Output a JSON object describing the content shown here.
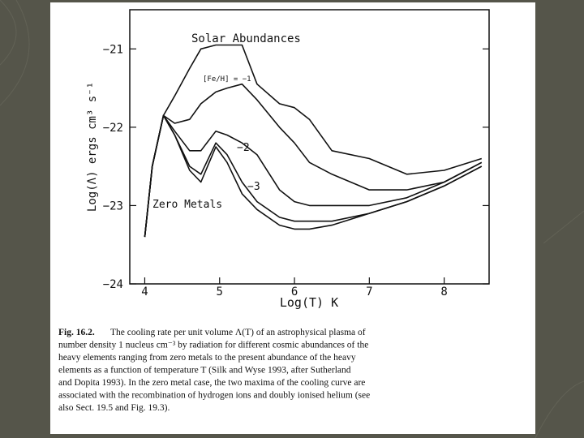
{
  "chart_data": {
    "type": "line",
    "xlabel": "Log(T) K",
    "ylabel": "Log(Λ) ergs cm³ s⁻¹",
    "x": [
      4.0,
      4.1,
      4.25,
      4.4,
      4.6,
      4.75,
      4.95,
      5.1,
      5.3,
      5.5,
      5.8,
      6.0,
      6.2,
      6.5,
      7.0,
      7.5,
      8.0,
      8.5
    ],
    "series": [
      {
        "name": "Solar Abundances",
        "color": "#111111",
        "values": [
          -23.4,
          -22.5,
          -21.85,
          -21.6,
          -21.25,
          -21.0,
          -20.95,
          -20.95,
          -20.95,
          -21.45,
          -21.7,
          -21.75,
          -21.9,
          -22.3,
          -22.4,
          -22.6,
          -22.55,
          -22.4
        ]
      },
      {
        "name": "[Fe/H] = −1",
        "color": "#111111",
        "values": [
          -23.4,
          -22.5,
          -21.85,
          -21.95,
          -21.9,
          -21.7,
          -21.55,
          -21.5,
          -21.45,
          -21.65,
          -22.0,
          -22.2,
          -22.45,
          -22.6,
          -22.8,
          -22.8,
          -22.7,
          -22.45
        ]
      },
      {
        "name": "−2",
        "color": "#111111",
        "values": [
          -23.4,
          -22.5,
          -21.85,
          -22.05,
          -22.3,
          -22.3,
          -22.05,
          -22.1,
          -22.2,
          -22.35,
          -22.8,
          -22.95,
          -23.0,
          -23.0,
          -23.0,
          -22.9,
          -22.7,
          -22.45
        ]
      },
      {
        "name": "−3",
        "color": "#111111",
        "values": [
          -23.4,
          -22.5,
          -21.85,
          -22.1,
          -22.5,
          -22.6,
          -22.2,
          -22.35,
          -22.7,
          -22.95,
          -23.15,
          -23.2,
          -23.2,
          -23.2,
          -23.1,
          -22.95,
          -22.75,
          -22.5
        ]
      },
      {
        "name": "Zero Metals",
        "color": "#111111",
        "values": [
          -23.4,
          -22.5,
          -21.85,
          -22.1,
          -22.55,
          -22.7,
          -22.25,
          -22.45,
          -22.85,
          -23.05,
          -23.25,
          -23.3,
          -23.3,
          -23.25,
          -23.1,
          -22.95,
          -22.75,
          -22.5
        ]
      }
    ],
    "xlim": [
      3.8,
      8.6
    ],
    "ylim": [
      -24,
      -20.5
    ],
    "xticks": [
      4,
      5,
      6,
      7,
      8
    ],
    "yticks": [
      {
        "value": -24,
        "label": "−24"
      },
      {
        "value": -23,
        "label": "−23"
      },
      {
        "value": -22,
        "label": "−22"
      },
      {
        "value": -21,
        "label": "−21"
      }
    ]
  },
  "caption": {
    "label": "Fig. 16.2.",
    "lines": [
      "The cooling rate per unit volume Λ(T) of an astrophysical plasma of",
      "number density 1 nucleus cm⁻³ by radiation for different cosmic abundances of the",
      "heavy elements ranging from zero metals to the present abundance of the heavy",
      "elements as a function of temperature T (Silk and Wyse 1993, after Sutherland",
      "and Dopita 1993). In the zero metal case, the two maxima of the cooling curve are",
      "associated with the recombination of hydrogen ions and doubly ionised helium (see",
      "also Sect. 19.5 and Fig. 19.3)."
    ]
  }
}
